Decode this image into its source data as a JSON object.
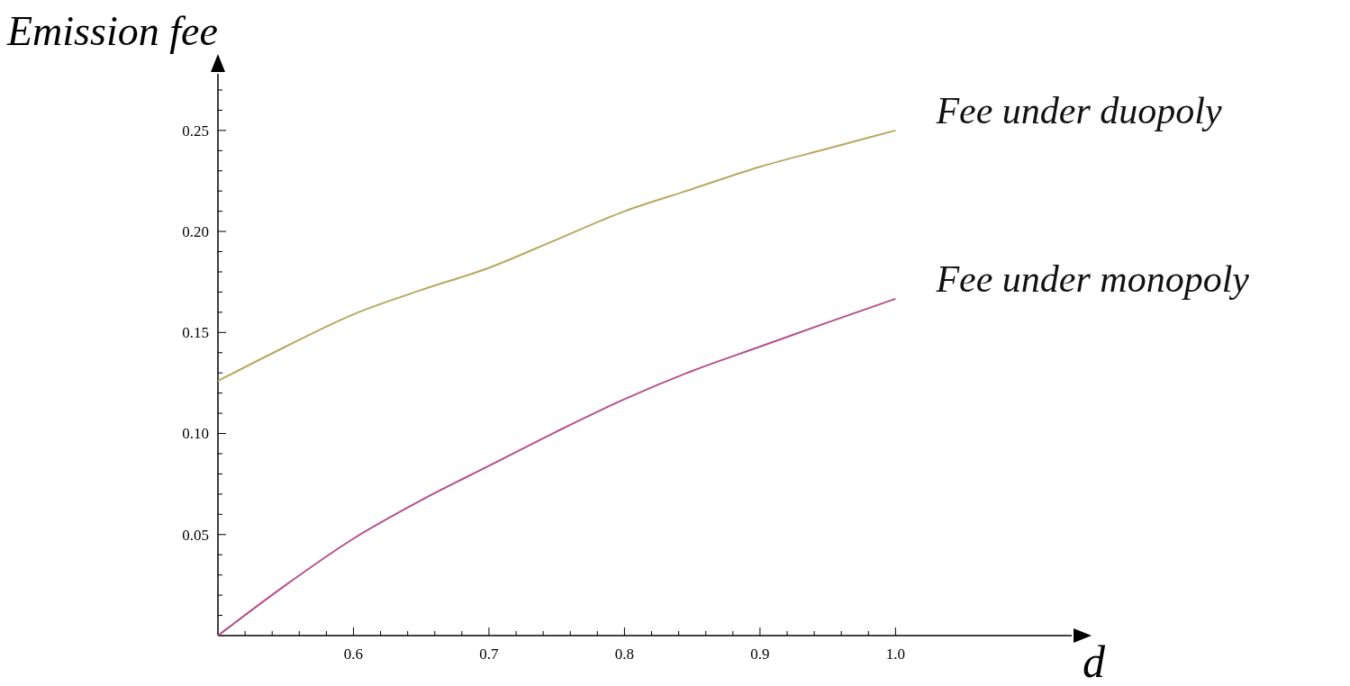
{
  "chart_data": {
    "type": "line",
    "xlabel": "d",
    "ylabel": "Emission fee",
    "x": [
      0.5,
      0.55,
      0.6,
      0.65,
      0.7,
      0.75,
      0.8,
      0.85,
      0.9,
      0.95,
      1.0
    ],
    "series": [
      {
        "name": "Fee under duopoly",
        "color": "#b8a860",
        "values": [
          0.126,
          0.143,
          0.159,
          0.171,
          0.182,
          0.196,
          0.21,
          0.221,
          0.232,
          0.241,
          0.25
        ]
      },
      {
        "name": "Fee under monopoly",
        "color": "#b4508e",
        "values": [
          0,
          0.025,
          0.048,
          0.067,
          0.084,
          0.101,
          0.117,
          0.131,
          0.143,
          0.155,
          0.1667
        ]
      }
    ],
    "xlim": [
      0.5,
      1.13
    ],
    "ylim": [
      0,
      0.278
    ],
    "xticks": [
      {
        "value": 0.52,
        "label": null
      },
      {
        "value": 0.54,
        "label": null
      },
      {
        "value": 0.56,
        "label": null
      },
      {
        "value": 0.58,
        "label": null
      },
      {
        "value": 0.6,
        "label": "0.6"
      },
      {
        "value": 0.62,
        "label": null
      },
      {
        "value": 0.64,
        "label": null
      },
      {
        "value": 0.66,
        "label": null
      },
      {
        "value": 0.68,
        "label": null
      },
      {
        "value": 0.7,
        "label": "0.7"
      },
      {
        "value": 0.72,
        "label": null
      },
      {
        "value": 0.74,
        "label": null
      },
      {
        "value": 0.76,
        "label": null
      },
      {
        "value": 0.78,
        "label": null
      },
      {
        "value": 0.8,
        "label": "0.8"
      },
      {
        "value": 0.82,
        "label": null
      },
      {
        "value": 0.84,
        "label": null
      },
      {
        "value": 0.86,
        "label": null
      },
      {
        "value": 0.88,
        "label": null
      },
      {
        "value": 0.9,
        "label": "0.9"
      },
      {
        "value": 0.92,
        "label": null
      },
      {
        "value": 0.94,
        "label": null
      },
      {
        "value": 0.96,
        "label": null
      },
      {
        "value": 0.98,
        "label": null
      },
      {
        "value": 1.0,
        "label": "1.0"
      }
    ],
    "yticks": [
      {
        "value": 0.01,
        "label": null
      },
      {
        "value": 0.02,
        "label": null
      },
      {
        "value": 0.03,
        "label": null
      },
      {
        "value": 0.04,
        "label": null
      },
      {
        "value": 0.05,
        "label": "0.05"
      },
      {
        "value": 0.06,
        "label": null
      },
      {
        "value": 0.07,
        "label": null
      },
      {
        "value": 0.08,
        "label": null
      },
      {
        "value": 0.09,
        "label": null
      },
      {
        "value": 0.1,
        "label": "0.10"
      },
      {
        "value": 0.11,
        "label": null
      },
      {
        "value": 0.12,
        "label": null
      },
      {
        "value": 0.13,
        "label": null
      },
      {
        "value": 0.14,
        "label": null
      },
      {
        "value": 0.15,
        "label": "0.15"
      },
      {
        "value": 0.16,
        "label": null
      },
      {
        "value": 0.17,
        "label": null
      },
      {
        "value": 0.18,
        "label": null
      },
      {
        "value": 0.19,
        "label": null
      },
      {
        "value": 0.2,
        "label": "0.20"
      },
      {
        "value": 0.21,
        "label": null
      },
      {
        "value": 0.22,
        "label": null
      },
      {
        "value": 0.23,
        "label": null
      },
      {
        "value": 0.24,
        "label": null
      },
      {
        "value": 0.25,
        "label": "0.25"
      },
      {
        "value": 0.26,
        "label": null
      },
      {
        "value": 0.27,
        "label": null
      }
    ],
    "grid": false
  }
}
